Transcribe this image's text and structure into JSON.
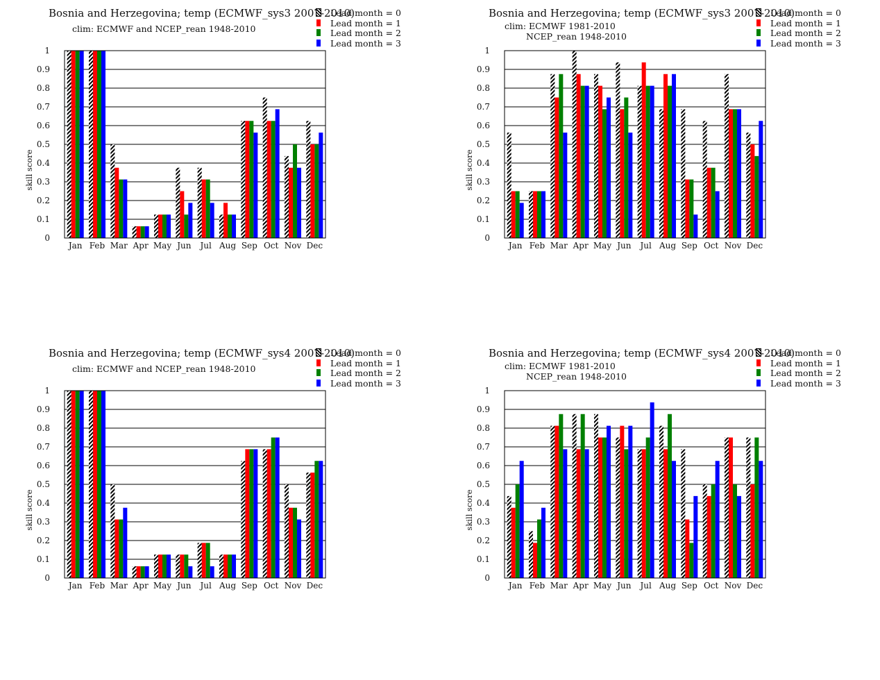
{
  "lead_colors": [
    "hatch-black-white",
    "#ff0000",
    "#008000",
    "#0000ff"
  ],
  "legend": {
    "items": [
      {
        "label": "Lead month = 0",
        "color": "hatch-black-white"
      },
      {
        "label": "Lead month = 1",
        "color": "#ff0000"
      },
      {
        "label": "Lead month = 2",
        "color": "#008000"
      },
      {
        "label": "Lead month = 3",
        "color": "#0000ff"
      }
    ]
  },
  "chart_data": [
    {
      "type": "bar",
      "title": "Bosnia and Herzegovina; temp (ECMWF_sys3 2007-2010)",
      "clim_lines": [
        "clim: ECMWF and NCEP_rean 1948-2010"
      ],
      "xlabel": "",
      "ylabel": "skill score",
      "ylim": [
        0,
        1
      ],
      "yticks": [
        "0",
        "0.1",
        "0.2",
        "0.3",
        "0.4",
        "0.5",
        "0.6",
        "0.7",
        "0.8",
        "0.9",
        "1"
      ],
      "grid": "horizontal",
      "legend_position": "top-right",
      "categories": [
        "Jan",
        "Feb",
        "Mar",
        "Apr",
        "May",
        "Jun",
        "Jul",
        "Aug",
        "Sep",
        "Oct",
        "Nov",
        "Dec"
      ],
      "series": [
        {
          "name": "Lead month = 0",
          "values": [
            1.0,
            1.0,
            0.5,
            0.0625,
            0.125,
            0.375,
            0.375,
            0.125,
            0.625,
            0.75,
            0.4375,
            0.625
          ]
        },
        {
          "name": "Lead month = 1",
          "values": [
            1.0,
            1.0,
            0.375,
            0.0625,
            0.125,
            0.25,
            0.3125,
            0.1875,
            0.625,
            0.625,
            0.375,
            0.5
          ]
        },
        {
          "name": "Lead month = 2",
          "values": [
            1.0,
            1.0,
            0.3125,
            0.0625,
            0.125,
            0.125,
            0.3125,
            0.125,
            0.625,
            0.625,
            0.5,
            0.5
          ]
        },
        {
          "name": "Lead month = 3",
          "values": [
            1.0,
            1.0,
            0.3125,
            0.0625,
            0.125,
            0.1875,
            0.1875,
            0.125,
            0.5625,
            0.6875,
            0.375,
            0.5625
          ]
        }
      ]
    },
    {
      "type": "bar",
      "title": "Bosnia and Herzegovina; temp (ECMWF_sys3 2007-2010)",
      "clim_lines": [
        "clim: ECMWF 1981-2010",
        "NCEP_rean 1948-2010"
      ],
      "xlabel": "",
      "ylabel": "skill score",
      "ylim": [
        0,
        1
      ],
      "yticks": [
        "0",
        "0.1",
        "0.2",
        "0.3",
        "0.4",
        "0.5",
        "0.6",
        "0.7",
        "0.8",
        "0.9",
        "1"
      ],
      "grid": "horizontal",
      "legend_position": "top-right",
      "categories": [
        "Jan",
        "Feb",
        "Mar",
        "Apr",
        "May",
        "Jun",
        "Jul",
        "Aug",
        "Sep",
        "Oct",
        "Nov",
        "Dec"
      ],
      "series": [
        {
          "name": "Lead month = 0",
          "values": [
            0.5625,
            0.25,
            0.875,
            1.0,
            0.875,
            0.9375,
            0.8125,
            0.6875,
            0.6875,
            0.625,
            0.875,
            0.5625
          ]
        },
        {
          "name": "Lead month = 1",
          "values": [
            0.25,
            0.25,
            0.75,
            0.875,
            0.8125,
            0.6875,
            0.9375,
            0.875,
            0.3125,
            0.375,
            0.6875,
            0.5
          ]
        },
        {
          "name": "Lead month = 2",
          "values": [
            0.25,
            0.25,
            0.875,
            0.8125,
            0.6875,
            0.75,
            0.8125,
            0.8125,
            0.3125,
            0.375,
            0.6875,
            0.4375
          ]
        },
        {
          "name": "Lead month = 3",
          "values": [
            0.1875,
            0.25,
            0.5625,
            0.8125,
            0.75,
            0.5625,
            0.8125,
            0.875,
            0.125,
            0.25,
            0.6875,
            0.625
          ]
        }
      ]
    },
    {
      "type": "bar",
      "title": "Bosnia and Herzegovina; temp (ECMWF_sys4 2007-2010)",
      "clim_lines": [
        "clim: ECMWF and NCEP_rean 1948-2010"
      ],
      "xlabel": "",
      "ylabel": "skill score",
      "ylim": [
        0,
        1
      ],
      "yticks": [
        "0",
        "0.1",
        "0.2",
        "0.3",
        "0.4",
        "0.5",
        "0.6",
        "0.7",
        "0.8",
        "0.9",
        "1"
      ],
      "grid": "horizontal",
      "legend_position": "top-right",
      "categories": [
        "Jan",
        "Feb",
        "Mar",
        "Apr",
        "May",
        "Jun",
        "Jul",
        "Aug",
        "Sep",
        "Oct",
        "Nov",
        "Dec"
      ],
      "series": [
        {
          "name": "Lead month = 0",
          "values": [
            1.0,
            1.0,
            0.5,
            0.0625,
            0.125,
            0.125,
            0.1875,
            0.125,
            0.625,
            0.6875,
            0.5,
            0.5625
          ]
        },
        {
          "name": "Lead month = 1",
          "values": [
            1.0,
            1.0,
            0.3125,
            0.0625,
            0.125,
            0.125,
            0.1875,
            0.125,
            0.6875,
            0.6875,
            0.375,
            0.5625
          ]
        },
        {
          "name": "Lead month = 2",
          "values": [
            1.0,
            1.0,
            0.3125,
            0.0625,
            0.125,
            0.125,
            0.1875,
            0.125,
            0.6875,
            0.75,
            0.375,
            0.625
          ]
        },
        {
          "name": "Lead month = 3",
          "values": [
            1.0,
            1.0,
            0.375,
            0.0625,
            0.125,
            0.0625,
            0.0625,
            0.125,
            0.6875,
            0.75,
            0.3125,
            0.625
          ]
        }
      ]
    },
    {
      "type": "bar",
      "title": "Bosnia and Herzegovina; temp (ECMWF_sys4 2007-2010)",
      "clim_lines": [
        "clim: ECMWF 1981-2010",
        "NCEP_rean 1948-2010"
      ],
      "xlabel": "",
      "ylabel": "skill score",
      "ylim": [
        0,
        1
      ],
      "yticks": [
        "0",
        "0.1",
        "0.2",
        "0.3",
        "0.4",
        "0.5",
        "0.6",
        "0.7",
        "0.8",
        "0.9",
        "1"
      ],
      "grid": "horizontal",
      "legend_position": "top-right",
      "categories": [
        "Jan",
        "Feb",
        "Mar",
        "Apr",
        "May",
        "Jun",
        "Jul",
        "Aug",
        "Sep",
        "Oct",
        "Nov",
        "Dec"
      ],
      "series": [
        {
          "name": "Lead month = 0",
          "values": [
            0.4375,
            0.25,
            0.8125,
            0.875,
            0.875,
            0.75,
            0.6875,
            0.8125,
            0.6875,
            0.5,
            0.75,
            0.75
          ]
        },
        {
          "name": "Lead month = 1",
          "values": [
            0.375,
            0.1875,
            0.8125,
            0.6875,
            0.75,
            0.8125,
            0.6875,
            0.6875,
            0.3125,
            0.4375,
            0.75,
            0.5
          ]
        },
        {
          "name": "Lead month = 2",
          "values": [
            0.5,
            0.3125,
            0.875,
            0.875,
            0.75,
            0.6875,
            0.75,
            0.875,
            0.1875,
            0.5,
            0.5,
            0.75
          ]
        },
        {
          "name": "Lead month = 3",
          "values": [
            0.625,
            0.375,
            0.6875,
            0.6875,
            0.8125,
            0.8125,
            0.9375,
            0.625,
            0.4375,
            0.625,
            0.4375,
            0.625
          ]
        }
      ]
    }
  ]
}
